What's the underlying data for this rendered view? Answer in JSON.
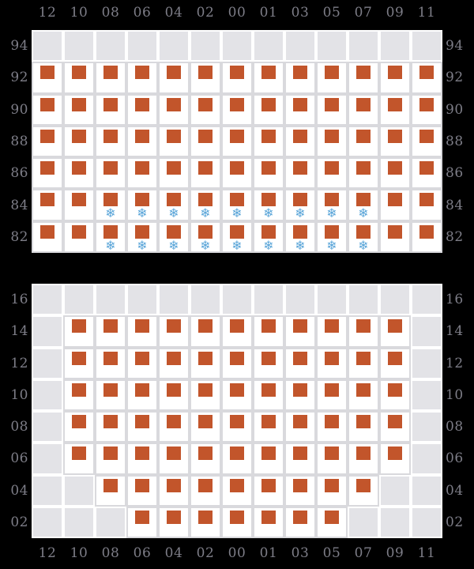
{
  "palette": {
    "background": "#000000",
    "label_color": "#7d7d87",
    "grid_line": "#d9d9dd",
    "blocked_cell": "#e3e3e7",
    "available_cell": "#ffffff",
    "marker_orange": "#c2552b",
    "snowflake_blue": "#58a4d8"
  },
  "icons": {
    "occupied_marker": "orange-square",
    "snowflake_glyph": "❄"
  },
  "column_labels": [
    "12",
    "10",
    "08",
    "06",
    "04",
    "02",
    "00",
    "01",
    "03",
    "05",
    "07",
    "09",
    "11"
  ],
  "cell_states": {
    "s": "seat-with-marker",
    "f": "seat-with-marker-and-snowflake",
    "x": "blocked-empty"
  },
  "top_grid": {
    "row_labels": [
      "94",
      "92",
      "90",
      "88",
      "86",
      "84",
      "82"
    ],
    "rows": [
      {
        "label": "94",
        "cells": "xxxxxxxxxxxxx"
      },
      {
        "label": "92",
        "cells": "sssssssssssss"
      },
      {
        "label": "90",
        "cells": "sssssssssssss"
      },
      {
        "label": "88",
        "cells": "sssssssssssss"
      },
      {
        "label": "86",
        "cells": "sssssssssssss"
      },
      {
        "label": "84",
        "cells": "ssfffffffffss"
      },
      {
        "label": "82",
        "cells": "ssfffffffffss"
      }
    ]
  },
  "bottom_grid": {
    "row_labels": [
      "16",
      "14",
      "12",
      "10",
      "08",
      "06",
      "04",
      "02"
    ],
    "rows": [
      {
        "label": "16",
        "cells": "xxxxxxxxxxxxx"
      },
      {
        "label": "14",
        "cells": "xsssssssssssx"
      },
      {
        "label": "12",
        "cells": "xsssssssssssx"
      },
      {
        "label": "10",
        "cells": "xsssssssssssx"
      },
      {
        "label": "08",
        "cells": "xsssssssssssx"
      },
      {
        "label": "06",
        "cells": "xsssssssssssx"
      },
      {
        "label": "04",
        "cells": "xxsssssssssxx"
      },
      {
        "label": "02",
        "cells": "xxxsssssssxxx"
      }
    ]
  }
}
